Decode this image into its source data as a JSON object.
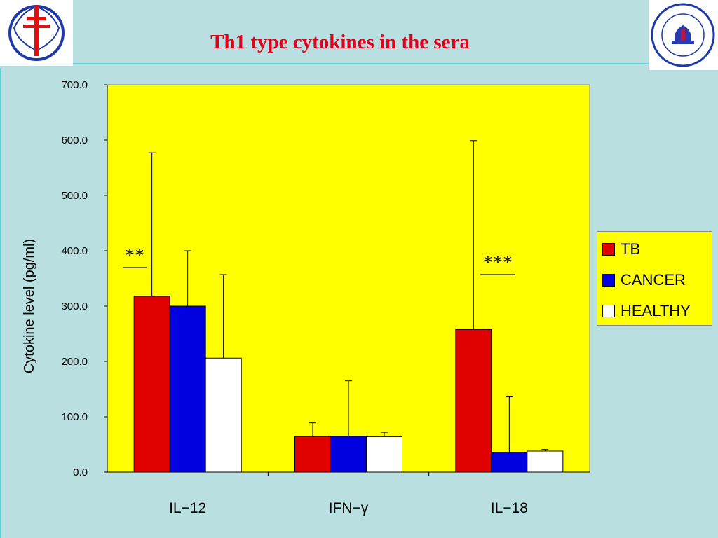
{
  "slide": {
    "title": "Th1 type cytokines in the sera"
  },
  "logos": {
    "left": "double-cross-emblem",
    "right": "kyoto-university-seal"
  },
  "chart_data": {
    "type": "bar",
    "title": "",
    "ylabel": "Cytokine level (pg/ml)",
    "xlabel": "",
    "ylim": [
      0,
      700
    ],
    "y_ticks": [
      "0.0",
      "100.0",
      "200.0",
      "300.0",
      "400.0",
      "500.0",
      "600.0",
      "700.0"
    ],
    "categories": [
      "IL-12",
      "IFN-γ",
      "IL-18"
    ],
    "category_labels": [
      "IL−12",
      "IFN−γ",
      "IL−18"
    ],
    "series": [
      {
        "name": "TB",
        "color": "#e00000",
        "values": [
          318,
          64,
          258
        ],
        "error_upper": [
          577,
          89,
          599
        ]
      },
      {
        "name": "CANCER",
        "color": "#0000e0",
        "values": [
          300,
          65,
          36
        ],
        "error_upper": [
          400,
          165,
          136
        ]
      },
      {
        "name": "HEALTHY",
        "color": "#ffffff",
        "values": [
          206,
          64,
          38
        ],
        "error_upper": [
          357,
          72,
          41
        ]
      }
    ],
    "plot_background": "#ffff00",
    "grid": false,
    "legend_position": "right",
    "annotations": [
      {
        "text": "**",
        "category": "IL-12"
      },
      {
        "text": "***",
        "category": "IL-18"
      }
    ]
  }
}
